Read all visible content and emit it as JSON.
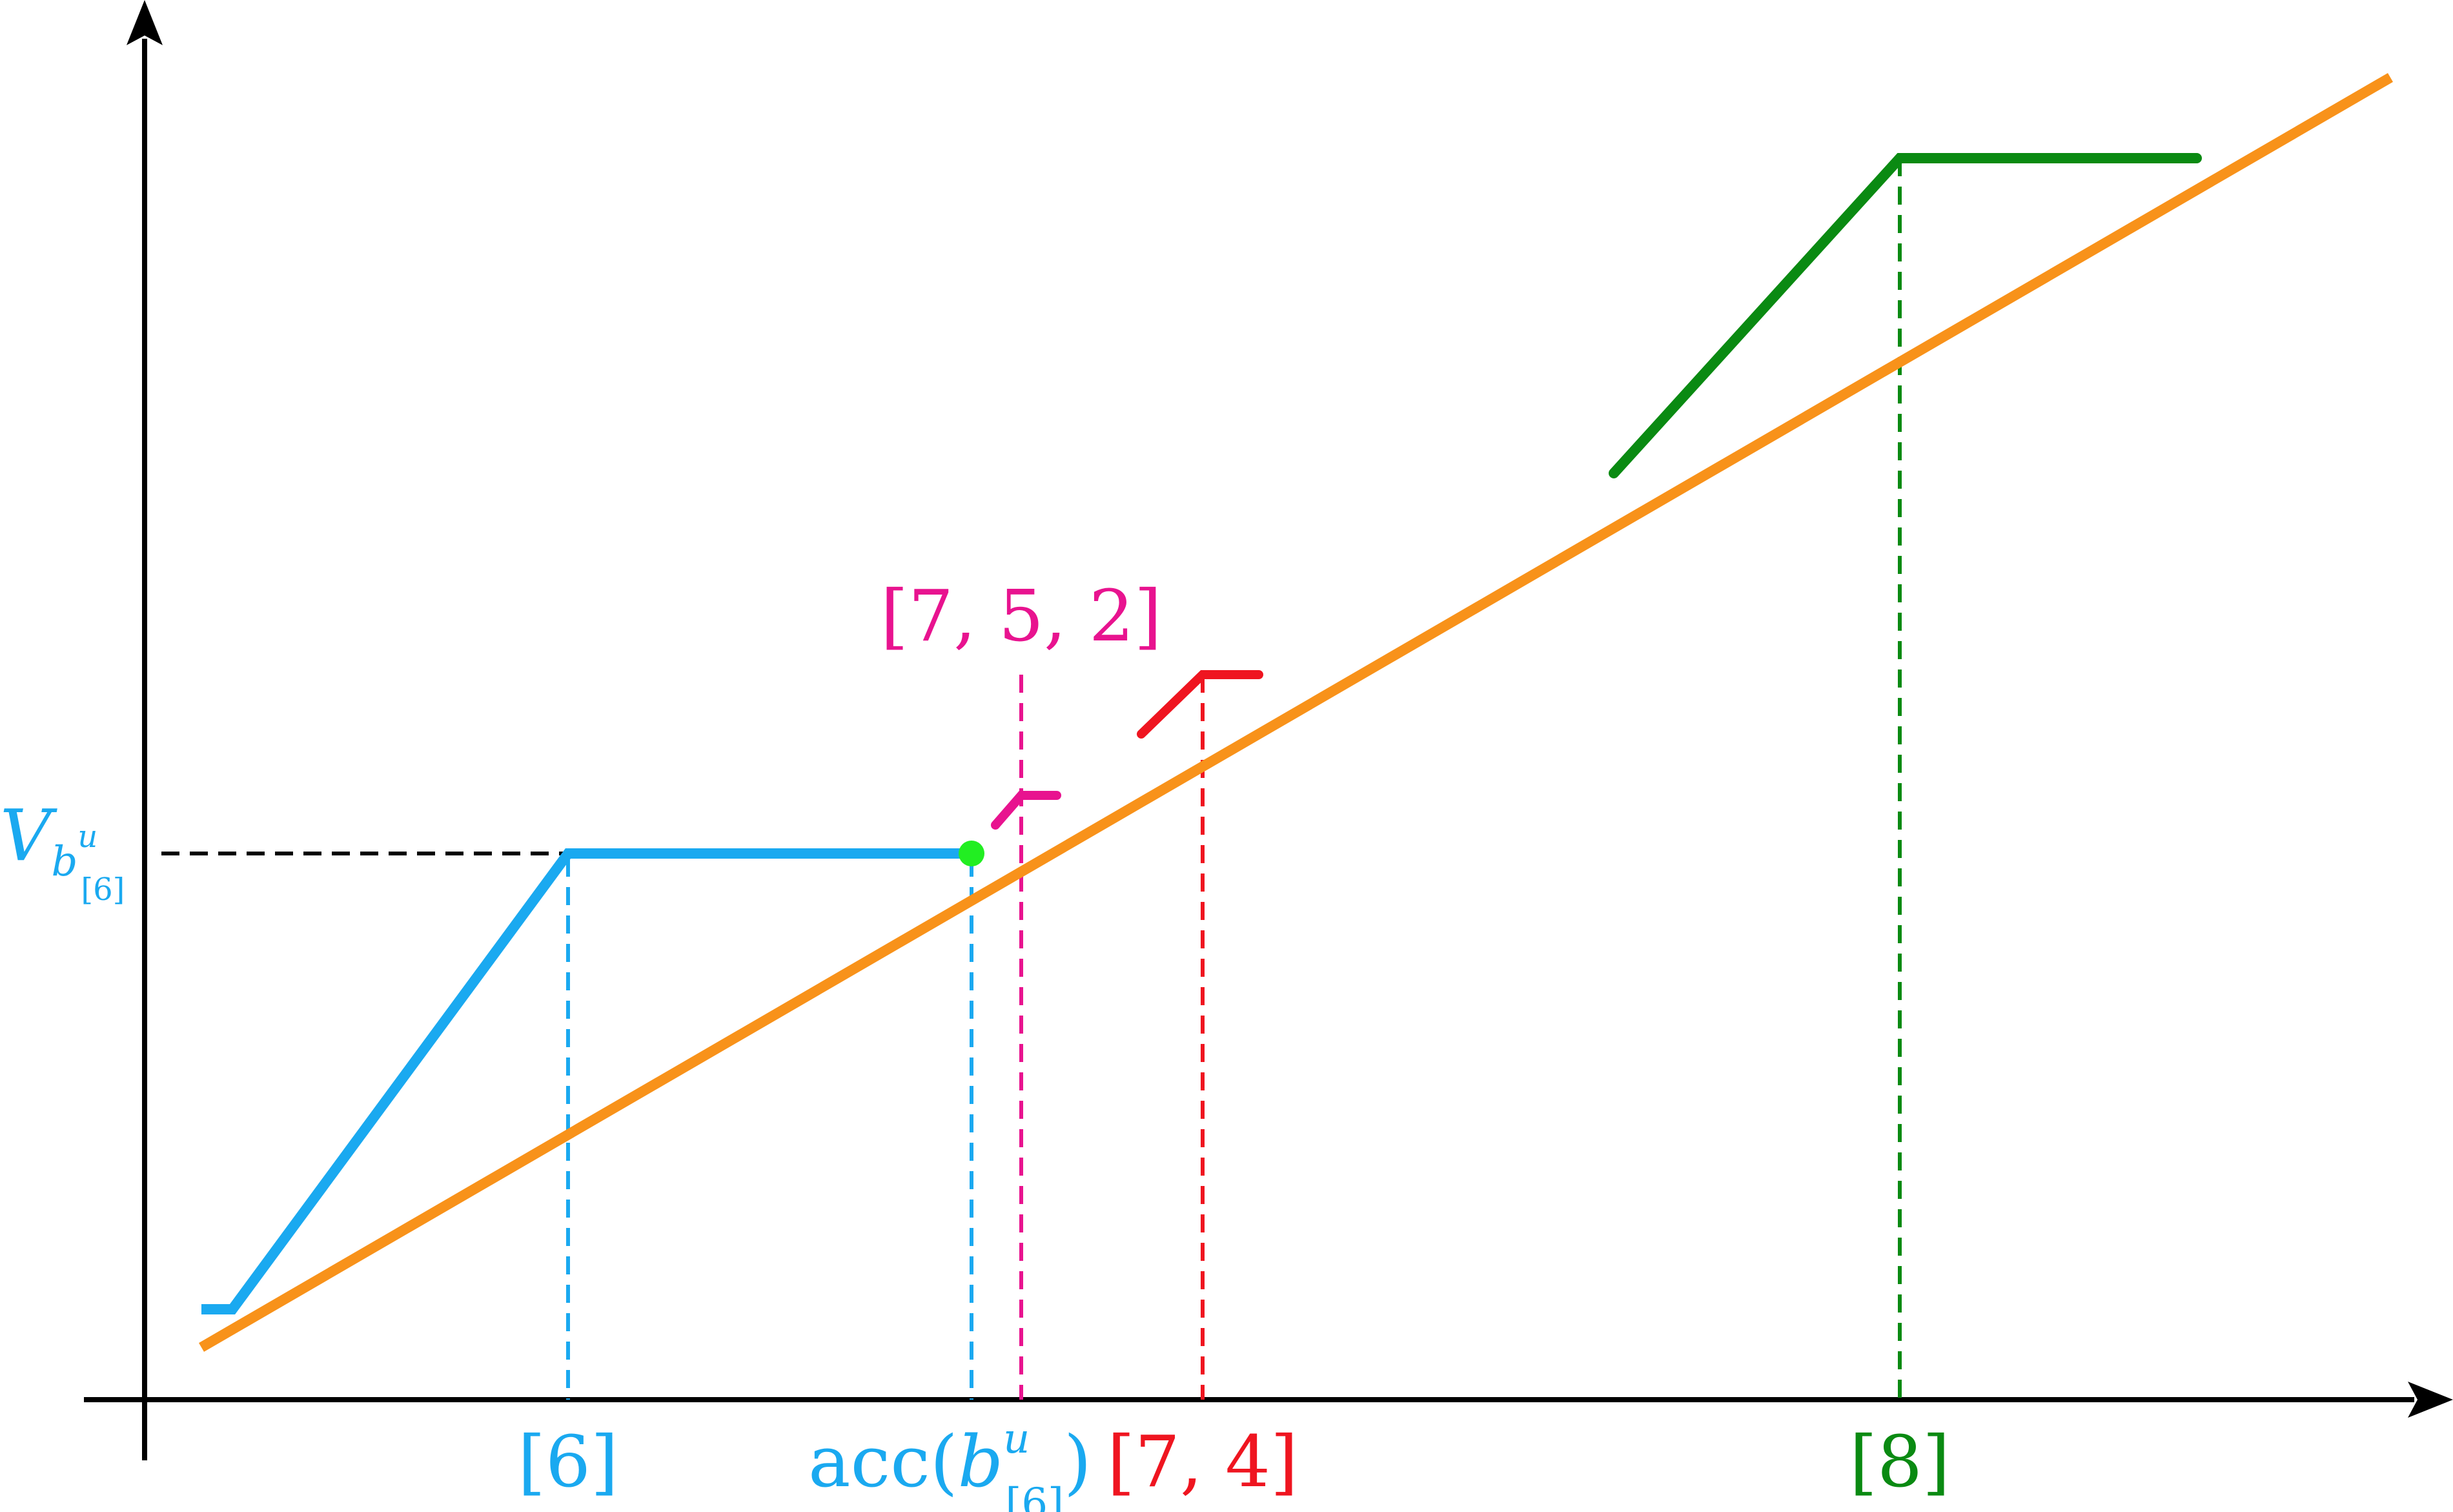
{
  "colors": {
    "axis": "#000000",
    "blue": "#1aa9f0",
    "orange": "#f8921a",
    "green": "#0a8a12",
    "red": "#ef1520",
    "magenta": "#e8138f",
    "dot": "#22ee22",
    "guide": "#000000"
  },
  "labels": {
    "six": "[6]",
    "acc_prefix": "acc(",
    "acc_var": "b",
    "acc_sup": "u",
    "acc_sub": "[6]",
    "acc_suffix": ")",
    "seven_four": "[7, 4]",
    "seven_five_two": "[7, 5, 2]",
    "eight": "[8]",
    "v_main": "V",
    "v_var": "b",
    "v_sup": "u",
    "v_sub": "[6]"
  }
}
